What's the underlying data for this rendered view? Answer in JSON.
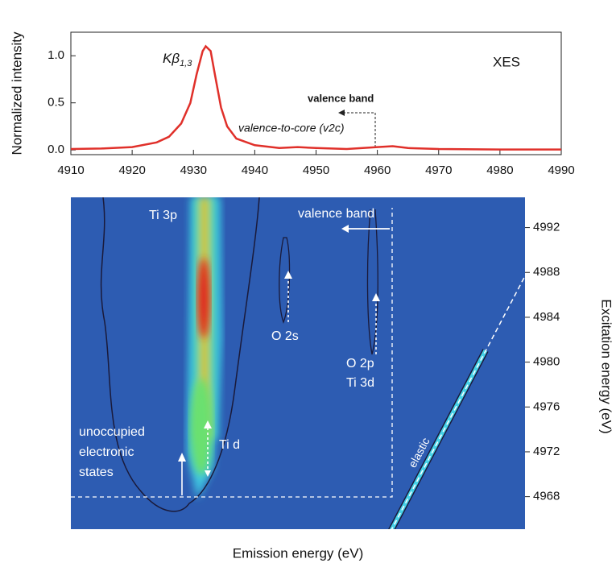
{
  "chart_data": [
    {
      "type": "line",
      "ylabel": "Normalized intensity",
      "color": "#e0302a",
      "annotations": {
        "xes": "XES",
        "peak": {
          "main": "Kβ",
          "sub": "1,3"
        },
        "valence_band": "valence band",
        "v2c": "valence-to-core (v2c)"
      },
      "x": [
        4910,
        4915,
        4920,
        4924,
        4926,
        4928,
        4929.5,
        4930.5,
        4931.5,
        4932,
        4932.8,
        4933.5,
        4934.5,
        4935.5,
        4937,
        4940,
        4944,
        4947,
        4950,
        4955,
        4960,
        4962.5,
        4965,
        4970,
        4980,
        4990
      ],
      "values": [
        0.01,
        0.015,
        0.03,
        0.08,
        0.14,
        0.28,
        0.5,
        0.8,
        1.05,
        1.1,
        1.05,
        0.8,
        0.45,
        0.25,
        0.12,
        0.05,
        0.02,
        0.03,
        0.02,
        0.01,
        0.03,
        0.04,
        0.02,
        0.01,
        0.005,
        0.005
      ],
      "xlim": [
        4910,
        4990
      ],
      "xticks": [
        4910,
        4920,
        4930,
        4940,
        4950,
        4960,
        4970,
        4980,
        4990
      ],
      "ylim": [
        -0.05,
        1.25
      ],
      "yticks": [
        {
          "value": 0,
          "label": "0.0"
        },
        {
          "value": 0.5,
          "label": "0.5"
        },
        {
          "value": 1,
          "label": "1.0"
        }
      ]
    },
    {
      "type": "heatmap",
      "xlabel": "Emission energy (eV)",
      "y2label": "Excitation energy (eV)",
      "y2lim": [
        4965.1,
        4994.7
      ],
      "y2ticks": [
        4968,
        4972,
        4976,
        4980,
        4984,
        4988,
        4992
      ],
      "annotations": {
        "ti3p": "Ti 3p",
        "valence_band": "valence band",
        "o2s": "O 2s",
        "o2p": "O 2p",
        "ti3d": "Ti 3d",
        "unocc": [
          "unoccupied",
          "electronic",
          "states"
        ],
        "tid": "Ti d",
        "elastic": "elastic"
      }
    }
  ]
}
